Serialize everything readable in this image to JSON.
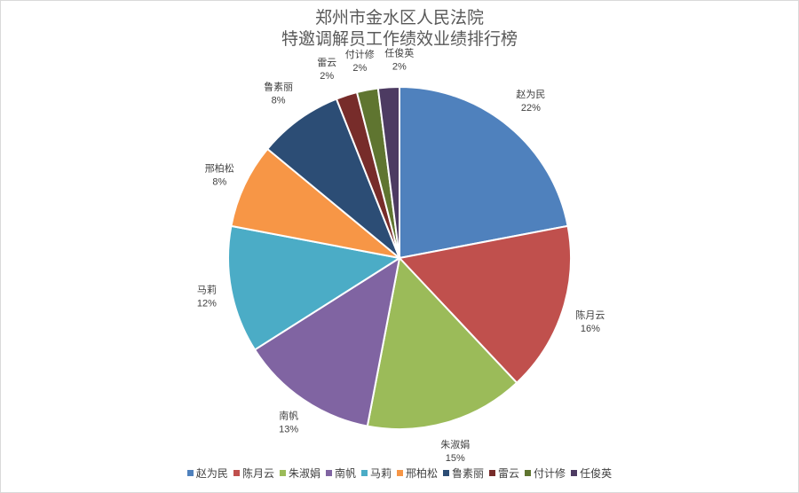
{
  "chart_data": {
    "type": "pie",
    "title_lines": [
      "郑州市金水区人民法院",
      "特邀调解员工作绩效业绩排行榜"
    ],
    "legend_position": "bottom",
    "slices": [
      {
        "name": "赵为民",
        "value": 22,
        "label": "22%",
        "color": "#4f81bd"
      },
      {
        "name": "陈月云",
        "value": 16,
        "label": "16%",
        "color": "#c0504d"
      },
      {
        "name": "朱淑娟",
        "value": 15,
        "label": "15%",
        "color": "#9bbb59"
      },
      {
        "name": "南帆",
        "value": 13,
        "label": "13%",
        "color": "#8064a2"
      },
      {
        "name": "马莉",
        "value": 12,
        "label": "12%",
        "color": "#4bacc6"
      },
      {
        "name": "邢柏松",
        "value": 8,
        "label": "8%",
        "color": "#f79646"
      },
      {
        "name": "鲁素丽",
        "value": 8,
        "label": "8%",
        "color": "#2c4d75"
      },
      {
        "name": "雷云",
        "value": 2,
        "label": "2%",
        "color": "#772c2a"
      },
      {
        "name": "付计修",
        "value": 2,
        "label": "2%",
        "color": "#5f7530"
      },
      {
        "name": "任俊英",
        "value": 2,
        "label": "2%",
        "color": "#4d3b62"
      }
    ]
  }
}
